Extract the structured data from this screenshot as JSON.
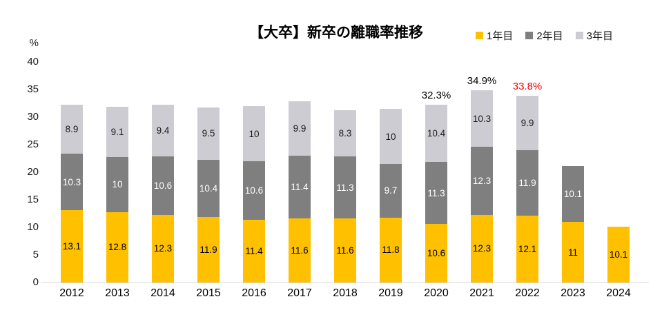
{
  "page": {
    "title": "【大卒】新卒の離職率推移"
  },
  "y_axis": {
    "unit": "%",
    "ticks": [
      40,
      35,
      30,
      25,
      20,
      15,
      10,
      5,
      0
    ],
    "max": 40
  },
  "legend": {
    "items": [
      {
        "label": "1年目",
        "color": "#FFC000"
      },
      {
        "label": "2年目",
        "color": "#7F7F7F"
      },
      {
        "label": "3年目",
        "color": "#CDCCD2"
      }
    ]
  },
  "chart_data": {
    "type": "bar",
    "stacked": true,
    "title": "【大卒】新卒の離職率推移",
    "xlabel": "",
    "ylabel": "%",
    "ylim": [
      0,
      40
    ],
    "grid": false,
    "legend_position": "top-right",
    "categories": [
      "2012",
      "2013",
      "2014",
      "2015",
      "2016",
      "2017",
      "2018",
      "2019",
      "2020",
      "2021",
      "2022",
      "2023",
      "2024"
    ],
    "series": [
      {
        "name": "1年目",
        "color": "#FFC000",
        "label_color": "#000000",
        "values": [
          13.1,
          12.8,
          12.3,
          11.9,
          11.4,
          11.6,
          11.6,
          11.8,
          10.6,
          12.3,
          12.1,
          11,
          10.1
        ]
      },
      {
        "name": "2年目",
        "color": "#7F7F7F",
        "label_color": "#FFFFFF",
        "values": [
          10.3,
          10,
          10.6,
          10.4,
          10.6,
          11.4,
          11.3,
          9.7,
          11.3,
          12.3,
          11.9,
          10.1,
          null
        ]
      },
      {
        "name": "3年目",
        "color": "#CDCCD2",
        "label_color": "#1A1A1A",
        "values": [
          8.9,
          9.1,
          9.4,
          9.5,
          10,
          9.9,
          8.3,
          10,
          10.4,
          10.3,
          9.9,
          null,
          null
        ]
      }
    ],
    "annotations": [
      {
        "category": "2020",
        "text": "32.3%",
        "color": "#000000"
      },
      {
        "category": "2021",
        "text": "34.9%",
        "color": "#000000"
      },
      {
        "category": "2022",
        "text": "33.8%",
        "color": "#FF0000"
      }
    ]
  }
}
